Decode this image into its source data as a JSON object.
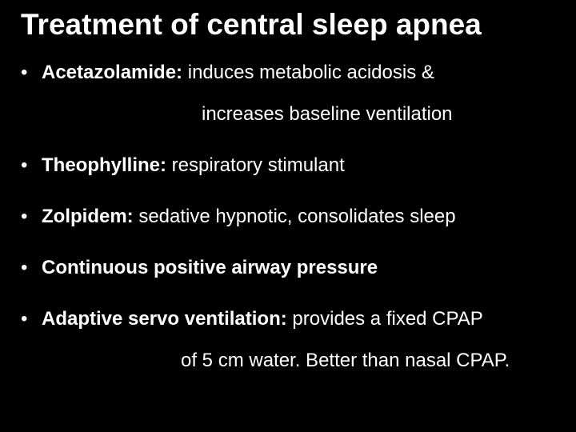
{
  "title": "Treatment of central sleep apnea",
  "items": [
    {
      "term": "Acetazolamide:",
      "desc": " induces metabolic acidosis &",
      "cont": "increases baseline ventilation",
      "cont_class": "cont-indent-a"
    },
    {
      "term": "Theophylline:",
      "desc": " respiratory stimulant"
    },
    {
      "term": "Zolpidem:",
      "desc": " sedative hypnotic, consolidates sleep"
    },
    {
      "term": "Continuous positive airway pressure",
      "desc": ""
    },
    {
      "term": "Adaptive servo ventilation:",
      "desc": " provides a fixed CPAP",
      "cont": "of 5 cm water. Better than nasal CPAP.",
      "cont_class": "cont-indent-b"
    }
  ],
  "colors": {
    "background": "#000000",
    "text": "#ffffff"
  },
  "typography": {
    "title_fontsize": 37,
    "body_fontsize": 24,
    "font_family": "Arial"
  }
}
